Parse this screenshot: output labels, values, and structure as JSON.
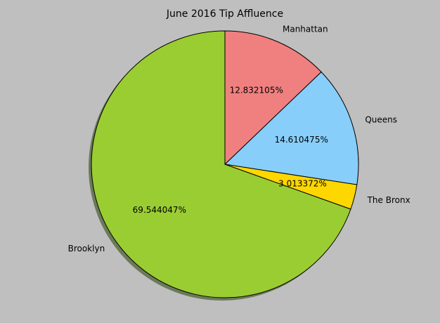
{
  "chart_data": {
    "type": "pie",
    "title": "June 2016 Tip Affluence",
    "shadow": true,
    "start_angle_deg": 90,
    "direction": "clockwise",
    "slices": [
      {
        "label": "Manhattan",
        "value": 12.832105,
        "pct_text": "12.832105%",
        "color": "#f08080"
      },
      {
        "label": "Queens",
        "value": 14.610475,
        "pct_text": "14.610475%",
        "color": "#87cefa"
      },
      {
        "label": "The Bronx",
        "value": 3.013372,
        "pct_text": "3.013372%",
        "color": "#ffd700"
      },
      {
        "label": "Brooklyn",
        "value": 69.544047,
        "pct_text": "69.544047%",
        "color": "#9acd32"
      }
    ]
  }
}
